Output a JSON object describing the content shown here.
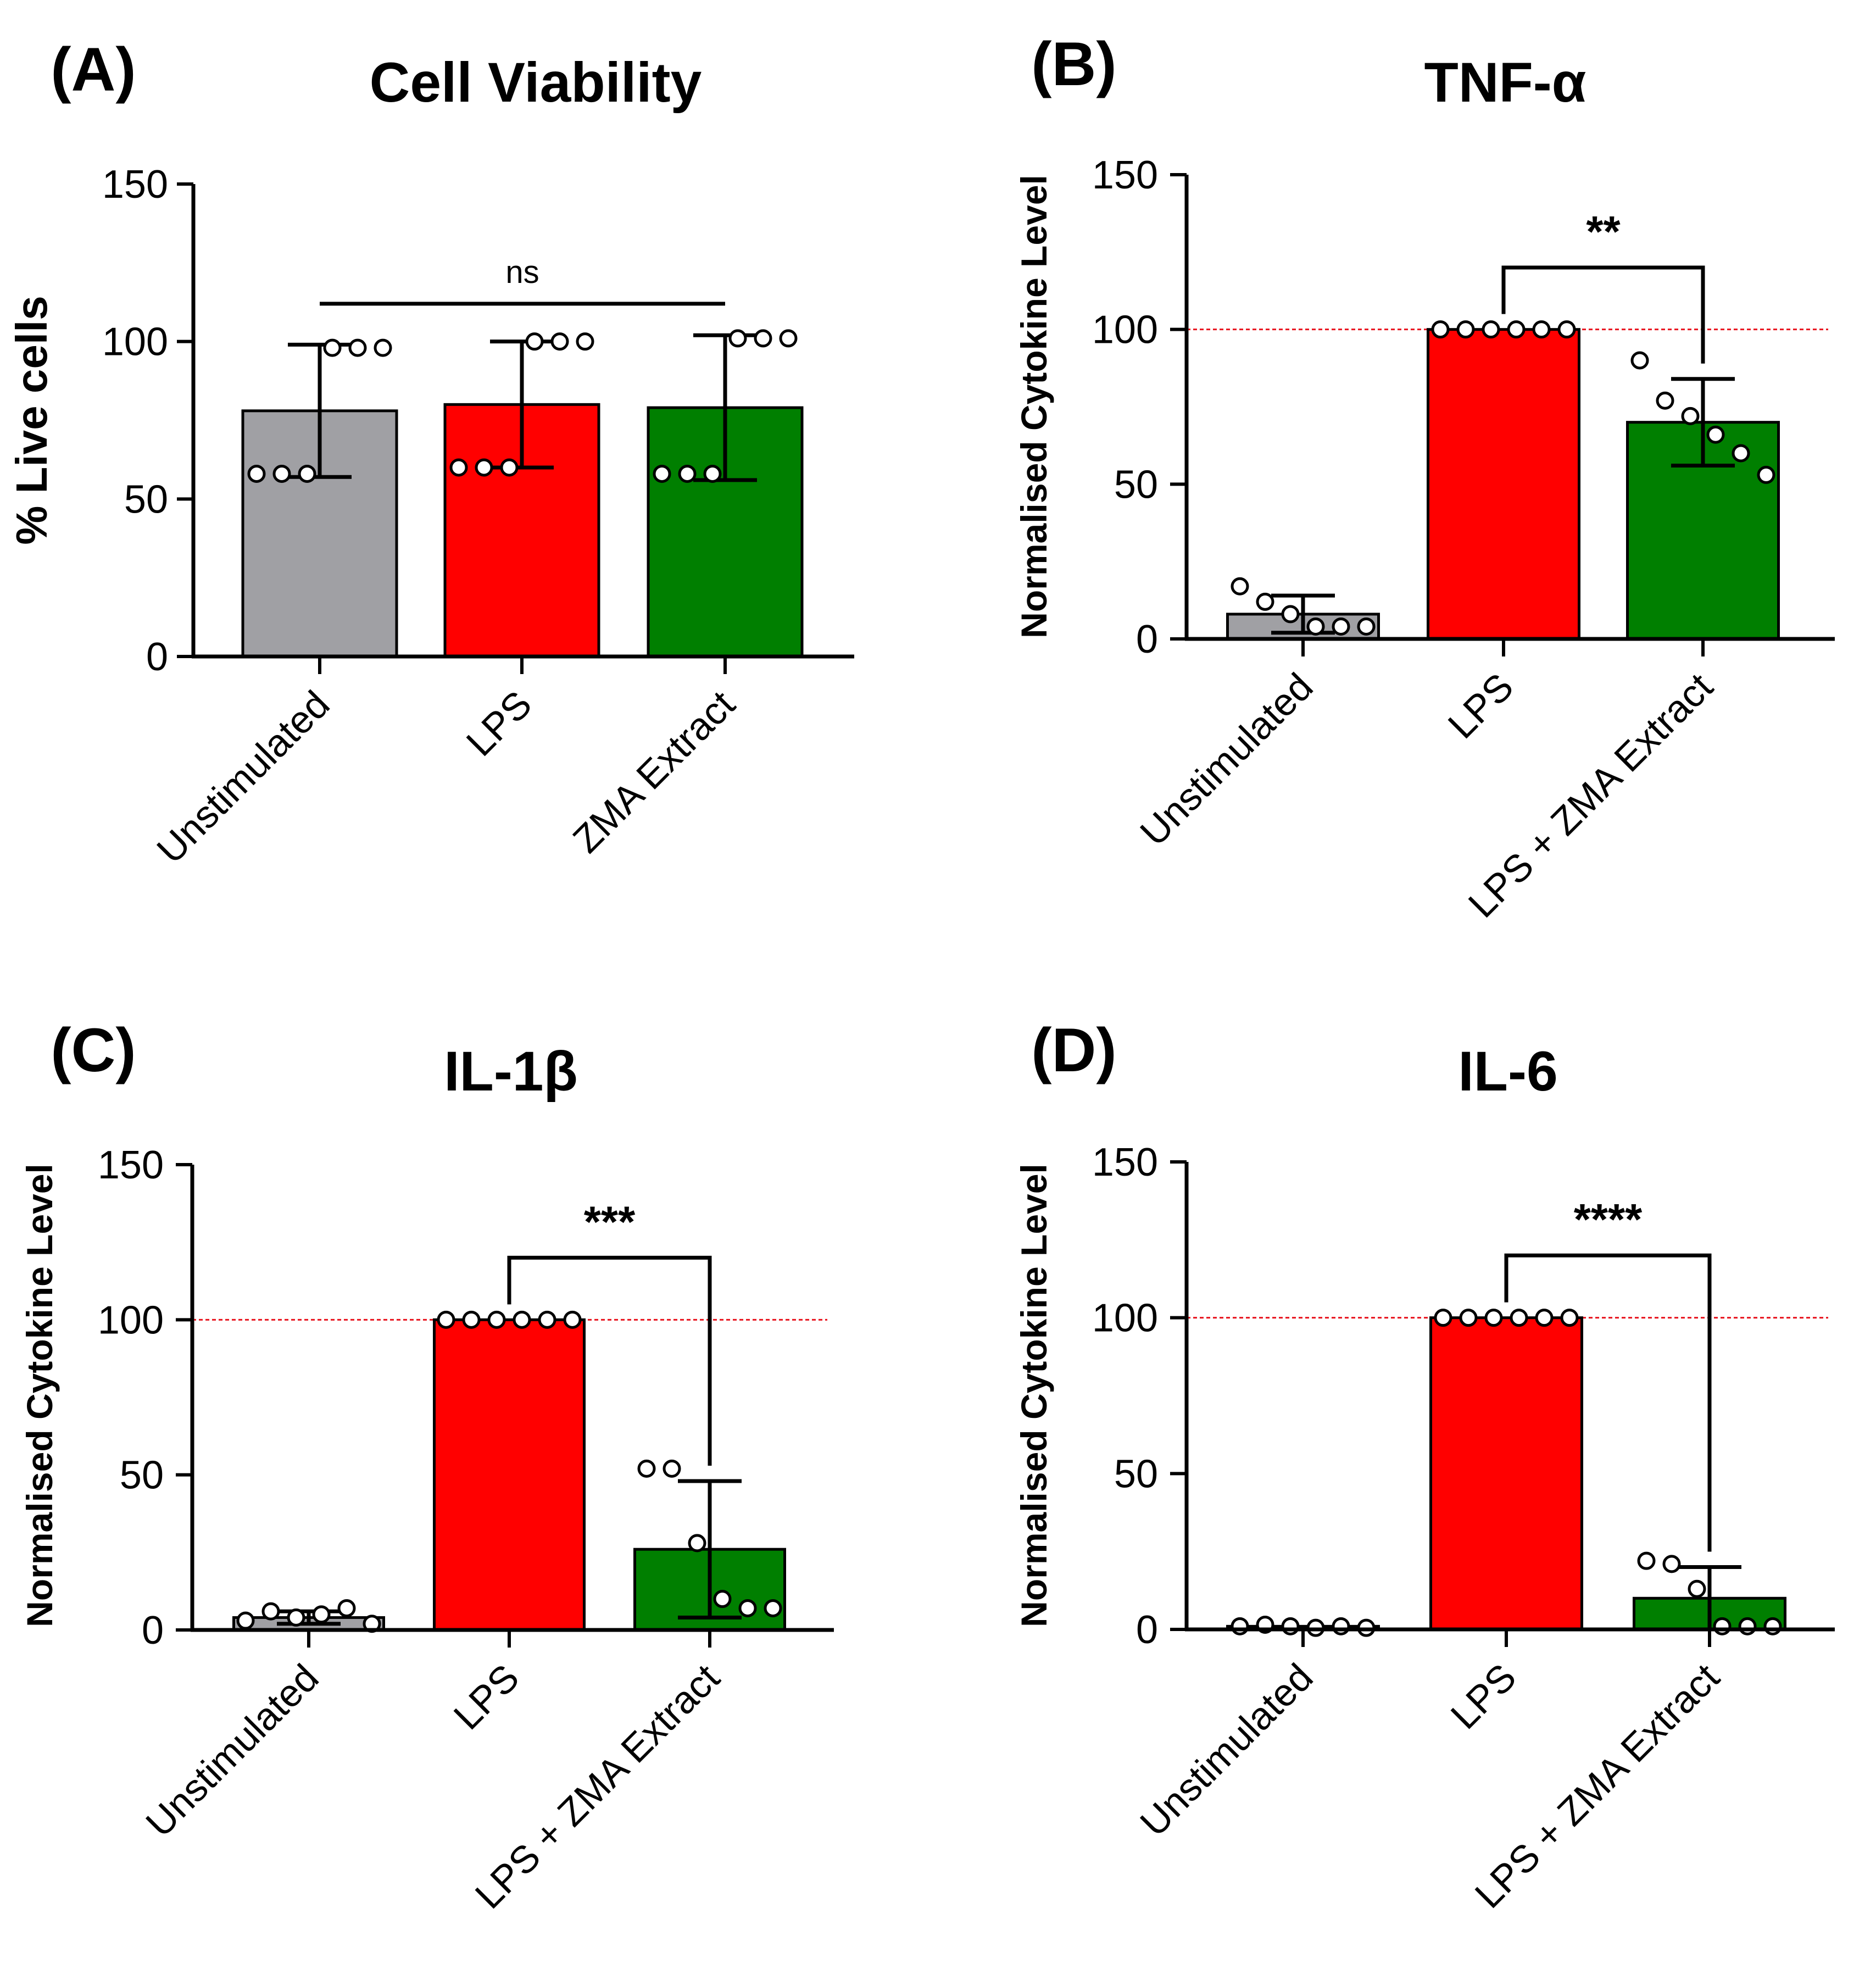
{
  "chart_data": [
    {
      "type": "bar",
      "panel": "(A)",
      "title": "Cell Viability",
      "xlabel": "",
      "ylabel": "% Live cells",
      "ylim": [
        0,
        150
      ],
      "yticks": [
        0,
        50,
        100,
        150
      ],
      "categories": [
        "Unstimulated",
        "LPS",
        "ZMA Extract"
      ],
      "colors": [
        "#a0a0a4",
        "#ff0000",
        "#007f00"
      ],
      "values": [
        78,
        80,
        79
      ],
      "error_sd": [
        21,
        20,
        23
      ],
      "points": [
        [
          58,
          58,
          58,
          98,
          98,
          98
        ],
        [
          60,
          60,
          60,
          100,
          100,
          100
        ],
        [
          58,
          58,
          58,
          101,
          101,
          101
        ]
      ],
      "reference_line": null,
      "significance": {
        "from": 0,
        "to": 2,
        "label": "ns",
        "y": 112
      }
    },
    {
      "type": "bar",
      "panel": "(B)",
      "title": "TNF-α",
      "xlabel": "",
      "ylabel": "Normalised Cytokine Level",
      "ylim": [
        0,
        150
      ],
      "yticks": [
        0,
        50,
        100,
        150
      ],
      "categories": [
        "Unstimulated",
        "LPS",
        "LPS + ZMA Extract"
      ],
      "colors": [
        "#a0a0a4",
        "#ff0000",
        "#007f00"
      ],
      "values": [
        8,
        100,
        70
      ],
      "error_sd": [
        6,
        0,
        14
      ],
      "points": [
        [
          17,
          12,
          8,
          4,
          4,
          4
        ],
        [
          100,
          100,
          100,
          100,
          100,
          100
        ],
        [
          90,
          77,
          72,
          66,
          60,
          53
        ]
      ],
      "reference_line": 100,
      "significance": {
        "from": 1,
        "to": 2,
        "label": "**",
        "y": 120
      }
    },
    {
      "type": "bar",
      "panel": "(C)",
      "title": "IL-1β",
      "xlabel": "",
      "ylabel": "Normalised Cytokine Level",
      "ylim": [
        0,
        150
      ],
      "yticks": [
        0,
        50,
        100,
        150
      ],
      "categories": [
        "Unstimulated",
        "LPS",
        "LPS + ZMA Extract"
      ],
      "colors": [
        "#a0a0a4",
        "#ff0000",
        "#007f00"
      ],
      "values": [
        4,
        100,
        26
      ],
      "error_sd": [
        2,
        0,
        22
      ],
      "points": [
        [
          3,
          6,
          4,
          5,
          7,
          2
        ],
        [
          100,
          100,
          100,
          100,
          100,
          100
        ],
        [
          52,
          52,
          28,
          10,
          7,
          7
        ]
      ],
      "reference_line": 100,
      "significance": {
        "from": 1,
        "to": 2,
        "label": "***",
        "y": 120
      }
    },
    {
      "type": "bar",
      "panel": "(D)",
      "title": "IL-6",
      "xlabel": "",
      "ylabel": "Normalised Cytokine Level",
      "ylim": [
        0,
        150
      ],
      "yticks": [
        0,
        50,
        100,
        150
      ],
      "categories": [
        "Unstimulated",
        "LPS",
        "LPS + ZMA Extract"
      ],
      "colors": [
        "#a0a0a4",
        "#ff0000",
        "#007f00"
      ],
      "values": [
        1,
        100,
        10
      ],
      "error_sd": [
        0,
        0,
        10
      ],
      "points": [
        [
          1,
          1.5,
          1,
          0.5,
          1,
          0.5
        ],
        [
          100,
          100,
          100,
          100,
          100,
          100
        ],
        [
          22,
          21,
          13,
          1,
          1,
          1
        ]
      ],
      "reference_line": 100,
      "significance": {
        "from": 1,
        "to": 2,
        "label": "****",
        "y": 120
      }
    }
  ]
}
